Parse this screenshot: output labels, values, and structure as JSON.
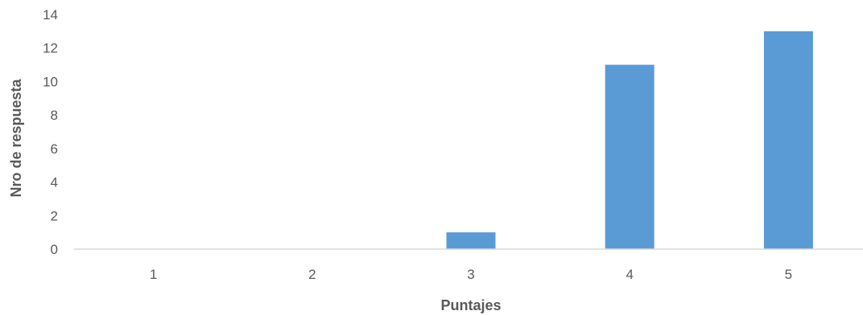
{
  "chart_data": {
    "type": "bar",
    "title": "",
    "xlabel": "Puntajes",
    "ylabel": "Nro de respuesta",
    "categories": [
      "1",
      "2",
      "3",
      "4",
      "5"
    ],
    "values": [
      0,
      0,
      1,
      11,
      13
    ],
    "ylim": [
      0,
      14
    ],
    "yticks": [
      0,
      2,
      4,
      6,
      8,
      10,
      12,
      14
    ],
    "grid": false,
    "legend": "none",
    "bar_color": "#5B9BD5"
  }
}
